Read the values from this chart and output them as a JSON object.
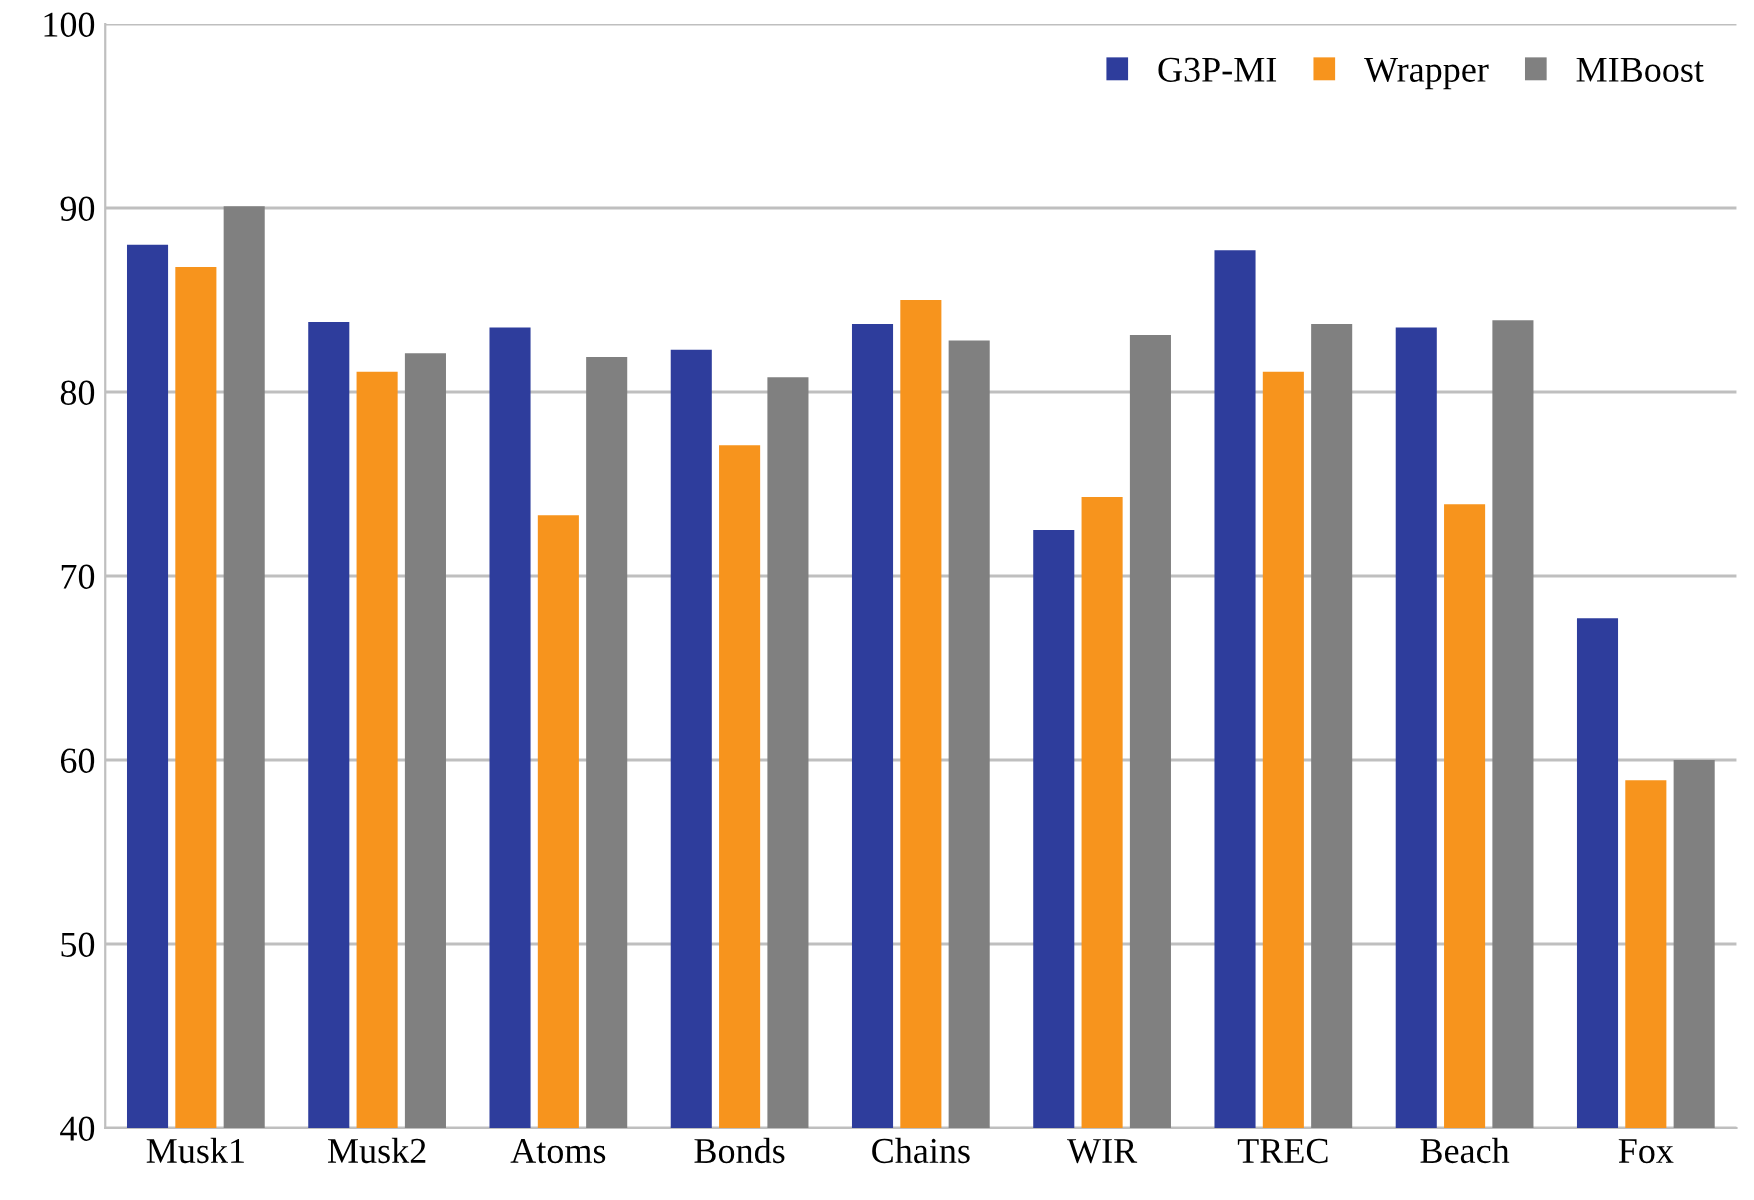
{
  "chart_data": {
    "type": "bar",
    "categories": [
      "Musk1",
      "Musk2",
      "Atoms",
      "Bonds",
      "Chains",
      "WIR",
      "TREC",
      "Beach",
      "Fox"
    ],
    "series": [
      {
        "name": "G3P-MI",
        "color": "#2e3d9c",
        "values": [
          88.0,
          83.8,
          83.5,
          82.3,
          83.7,
          72.5,
          87.7,
          83.5,
          67.7
        ]
      },
      {
        "name": "Wrapper",
        "color": "#f7941d",
        "values": [
          86.8,
          81.1,
          73.3,
          77.1,
          85.0,
          74.3,
          81.1,
          73.9,
          58.9
        ]
      },
      {
        "name": "MIBoost",
        "color": "#808080",
        "values": [
          90.1,
          82.1,
          81.9,
          80.8,
          82.8,
          83.1,
          83.7,
          83.9,
          60.0
        ]
      }
    ],
    "ylim": [
      40,
      100
    ],
    "yticks": [
      40,
      50,
      60,
      70,
      80,
      90,
      100
    ],
    "grid": "y",
    "legend": "top right"
  }
}
